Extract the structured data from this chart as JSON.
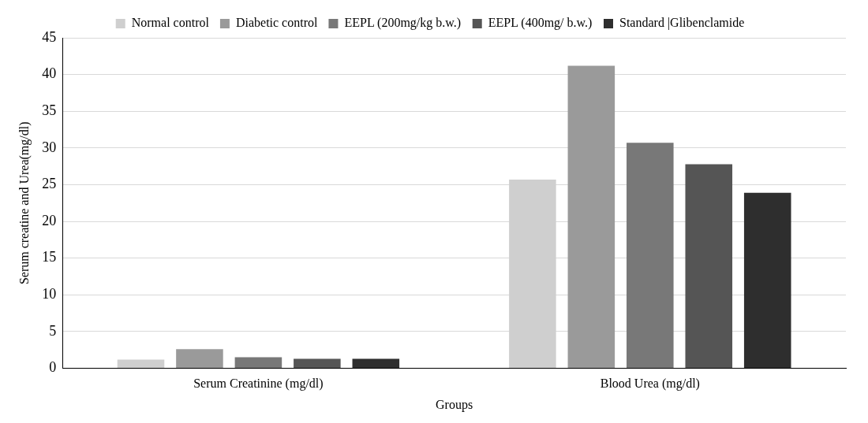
{
  "chart_data": {
    "type": "bar",
    "xlabel": "Groups",
    "ylabel": "Serum creatine and Urea(mg/dl)",
    "categories": [
      "Serum Creatinine (mg/dl)",
      "Blood Urea (mg/dl)"
    ],
    "series": [
      {
        "name": "Normal control",
        "color": "#cfcfcf",
        "values": [
          1.2,
          25.7
        ]
      },
      {
        "name": "Diabetic control",
        "color": "#9a9a9a",
        "values": [
          2.6,
          41.2
        ]
      },
      {
        "name": "EEPL (200mg/kg b.w.)",
        "color": "#787878",
        "values": [
          1.5,
          30.7
        ]
      },
      {
        "name": "EEPL (400mg/ b.w.)",
        "color": "#555555",
        "values": [
          1.3,
          27.8
        ]
      },
      {
        "name": "Standard |Glibenclamide",
        "color": "#2e2e2e",
        "values": [
          1.3,
          23.9
        ]
      }
    ],
    "ylim": [
      0,
      45
    ],
    "yticks": [
      0,
      5,
      10,
      15,
      20,
      25,
      30,
      35,
      40,
      45
    ],
    "grid": "y",
    "legend": "top"
  }
}
